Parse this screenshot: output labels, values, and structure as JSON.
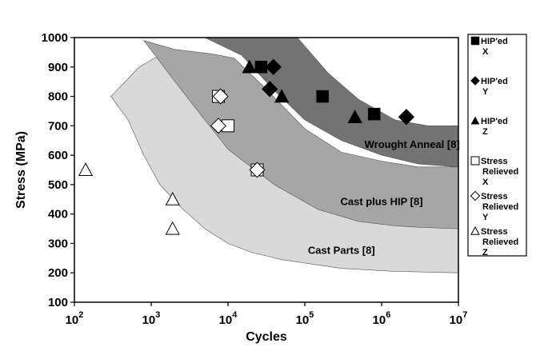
{
  "chart_data": {
    "type": "scatter",
    "xlabel": "Cycles",
    "ylabel": "Stress (MPa)",
    "xscale": "log",
    "xlim": [
      100,
      10000000
    ],
    "ylim": [
      100,
      1000
    ],
    "yticks": [
      100,
      200,
      300,
      400,
      500,
      600,
      700,
      800,
      900,
      1000
    ],
    "xticks": [
      {
        "value": 100,
        "base": "10",
        "exp": "2"
      },
      {
        "value": 1000,
        "base": "10",
        "exp": "3"
      },
      {
        "value": 10000,
        "base": "10",
        "exp": "4"
      },
      {
        "value": 100000,
        "base": "10",
        "exp": "5"
      },
      {
        "value": 1000000,
        "base": "10",
        "exp": "6"
      },
      {
        "value": 10000000,
        "base": "10",
        "exp": "7"
      }
    ],
    "grid": false,
    "legend_position": "right",
    "regions": [
      {
        "name": "Cast Parts [8]",
        "color": "#d9d9d9",
        "upper": [
          [
            300,
            800
          ],
          [
            700,
            900
          ],
          [
            1500,
            950
          ],
          [
            2500,
            940
          ],
          [
            4000,
            900
          ],
          [
            7000,
            800
          ],
          [
            12000,
            710
          ],
          [
            30000,
            580
          ],
          [
            100000,
            470
          ],
          [
            400000,
            410
          ],
          [
            2000000,
            385
          ],
          [
            10000000,
            380
          ]
        ],
        "lower": [
          [
            300,
            800
          ],
          [
            500,
            720
          ],
          [
            800,
            600
          ],
          [
            1300,
            500
          ],
          [
            2500,
            420
          ],
          [
            5000,
            350
          ],
          [
            10000,
            300
          ],
          [
            20000,
            270
          ],
          [
            50000,
            245
          ],
          [
            300000,
            215
          ],
          [
            1500000,
            205
          ],
          [
            10000000,
            200
          ]
        ]
      },
      {
        "name": "Cast plus HIP [8]",
        "color": "#a6a6a6",
        "upper": [
          [
            800,
            990
          ],
          [
            2000,
            960
          ],
          [
            6000,
            945
          ],
          [
            12000,
            930
          ],
          [
            30000,
            830
          ],
          [
            100000,
            690
          ],
          [
            300000,
            610
          ],
          [
            1000000,
            580
          ],
          [
            3000000,
            560
          ],
          [
            10000000,
            560
          ]
        ],
        "lower": [
          [
            800,
            990
          ],
          [
            2500,
            820
          ],
          [
            10000,
            620
          ],
          [
            40000,
            500
          ],
          [
            150000,
            415
          ],
          [
            500000,
            375
          ],
          [
            1500000,
            360
          ],
          [
            3000000,
            355
          ],
          [
            10000000,
            350
          ]
        ]
      },
      {
        "name": "Wrought Anneal [8]",
        "color": "#737373",
        "upper": [
          [
            5000,
            1000
          ],
          [
            80000,
            1000
          ],
          [
            200000,
            880
          ],
          [
            500000,
            790
          ],
          [
            1500000,
            720
          ],
          [
            4000000,
            700
          ],
          [
            10000000,
            700
          ]
        ],
        "lower": [
          [
            5000,
            1000
          ],
          [
            15000,
            940
          ],
          [
            40000,
            820
          ],
          [
            100000,
            720
          ],
          [
            300000,
            650
          ],
          [
            1000000,
            600
          ],
          [
            3000000,
            570
          ],
          [
            10000000,
            560
          ]
        ]
      }
    ],
    "region_labels": [
      {
        "text": "Wrought Anneal [8]",
        "x": 2500000,
        "y": 625
      },
      {
        "text": "Cast plus HIP [8]",
        "x": 1000000,
        "y": 430
      },
      {
        "text": "Cast Parts [8]",
        "x": 300000,
        "y": 265
      }
    ],
    "series": [
      {
        "name": "HIP'ed X",
        "label_lines": [
          "HIP'ed",
          "X"
        ],
        "marker": "square",
        "filled": true,
        "points": [
          [
            27000,
            900
          ],
          [
            170000,
            800
          ],
          [
            800000,
            740
          ]
        ]
      },
      {
        "name": "HIP'ed Y",
        "label_lines": [
          "HIP'ed",
          "Y"
        ],
        "marker": "diamond",
        "filled": true,
        "points": [
          [
            39000,
            900
          ],
          [
            35000,
            825
          ],
          [
            2100000,
            730
          ]
        ]
      },
      {
        "name": "HIP'ed Z",
        "label_lines": [
          "HIP'ed",
          "Z"
        ],
        "marker": "triangle",
        "filled": true,
        "points": [
          [
            19000,
            900
          ],
          [
            50000,
            800
          ],
          [
            450000,
            730
          ]
        ]
      },
      {
        "name": "Stress Relieved X",
        "label_lines": [
          "Stress",
          "Relieved",
          "X"
        ],
        "marker": "square",
        "filled": false,
        "points": [
          [
            7500,
            800
          ],
          [
            10000,
            700
          ],
          [
            24000,
            550
          ]
        ]
      },
      {
        "name": "Stress Relieved Y",
        "label_lines": [
          "Stress",
          "Relieved",
          "Y"
        ],
        "marker": "diamond",
        "filled": false,
        "points": [
          [
            8000,
            800
          ],
          [
            7500,
            700
          ],
          [
            24000,
            550
          ]
        ]
      },
      {
        "name": "Stress Relieved Z",
        "label_lines": [
          "Stress",
          "Relieved",
          "Z"
        ],
        "marker": "triangle",
        "filled": false,
        "points": [
          [
            140,
            550
          ],
          [
            1900,
            450
          ],
          [
            1900,
            350
          ]
        ]
      }
    ]
  }
}
